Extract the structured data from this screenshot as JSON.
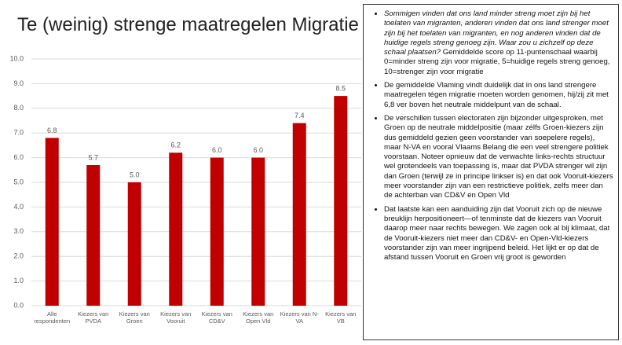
{
  "chart_data": {
    "type": "bar",
    "title": "Te (weinig) strenge maatregelen Migratie",
    "categories": [
      "Alle respondenten",
      "Kiezers van PVDA",
      "Kiezers van Groen",
      "Kiezers van Vooruit",
      "Kiezers van CD&V",
      "Kiezers van Open Vld",
      "Kiezers van N-VA",
      "Kiezers van VB"
    ],
    "values": [
      6.8,
      5.7,
      5.0,
      6.2,
      6.0,
      6.0,
      7.4,
      8.5
    ],
    "value_labels": [
      "6.8",
      "5.7",
      "5.0",
      "6.2",
      "6.0",
      "6.0",
      "7.4",
      "8.5"
    ],
    "color": "#c00000",
    "ylim": [
      0,
      10
    ],
    "yticks": [
      {
        "value": 0,
        "label": "0.0"
      },
      {
        "value": 1,
        "label": "1.0"
      },
      {
        "value": 2,
        "label": "2.0"
      },
      {
        "value": 3,
        "label": "3.0"
      },
      {
        "value": 4,
        "label": "4.0"
      },
      {
        "value": 5,
        "label": "5.0"
      },
      {
        "value": 6,
        "label": "6.0"
      },
      {
        "value": 7,
        "label": "7.0"
      },
      {
        "value": 8,
        "label": "8.0"
      },
      {
        "value": 9,
        "label": "9.0"
      },
      {
        "value": 10,
        "label": "10.0"
      }
    ],
    "grid": true
  },
  "notes": {
    "bullets": [
      {
        "italic": "Sommigen vinden dat ons land minder streng moet zijn bij het toelaten van migranten, anderen vinden dat ons land strenger moet zijn bij het toelaten van migranten, en nog anderen vinden dat de huidige regels streng genoeg zijn. Waar zou u zichzelf op deze schaal plaatsen?",
        "text": "Gemiddelde score op 11-puntenschaal waarbij 0=minder streng zijn voor migratie, 5=huidige regels streng genoeg, 10=strenger zijn voor migratie"
      },
      {
        "text": "De gemiddelde Vlaming vindt duidelijk dat in ons land strengere maatregelen tégen migratie moeten worden genomen, hij/zij zit met 6,8 ver boven het neutrale middelpunt van de schaal."
      },
      {
        "text": "De verschillen tussen electoraten zijn bijzonder uitgesproken, met Groen op de neutrale middelpositie (maar zélfs Groen-kiezers zijn dus gemiddeld gezien geen voorstander van soepelere regels), maar N-VA en vooral Vlaams Belang die een veel strengere politiek voorstaan. Noteer opnieuw dat de verwachte links-rechts structuur wel grotendeels van toepassing is, maar dat PVDA strenger wil zijn dan Groen (terwijl ze in principe linkser is) en dat ook Vooruit-kiezers meer voorstander zijn van een restrictieve politiek, zelfs meer dan de achterban van CD&V en Open Vld"
      },
      {
        "text": "Dat laatste kan een aanduiding zijn dat Vooruit zich op de nieuwe breuklijn herpositioneert—of tenminste dat de kiezers van Vooruit daarop meer naar rechts bewegen. We zagen ook al bij klimaat, dat de Vooruit-kiezers niet meer dan CD&V- en Open-Vld-kiezers voorstander zijn van meer ingrijpend beleid. Het lijkt er op dat de afstand tussen Vooruit en Groen vrij groot is geworden"
      }
    ]
  }
}
